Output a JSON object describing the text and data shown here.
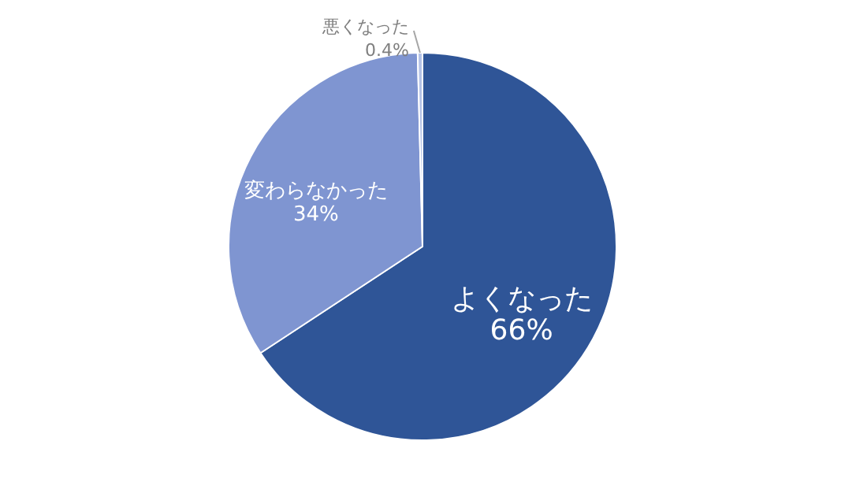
{
  "chart_data": {
    "type": "pie",
    "categories": [
      "よくなった",
      "変わらなかった",
      "悪くなった"
    ],
    "values": [
      66,
      34,
      0.4
    ],
    "value_labels": [
      "66%",
      "34%",
      "0.4%"
    ],
    "colors": [
      "#2f5597",
      "#7f95d1",
      "#b4c2e6"
    ]
  }
}
